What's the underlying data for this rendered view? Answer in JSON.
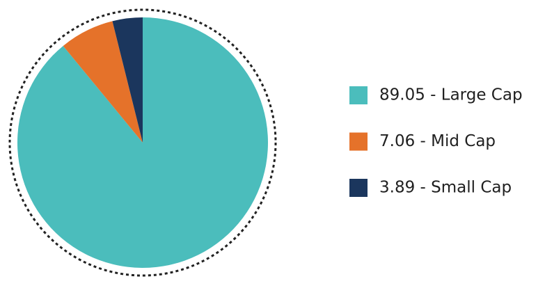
{
  "chart_data": {
    "type": "pie",
    "categories": [
      "89.05 - Large Cap",
      "7.06 - Mid Cap",
      "3.89 - Small Cap"
    ],
    "values": [
      89.05,
      7.06,
      3.89
    ],
    "colors": [
      "#4bbdbc",
      "#e5722a",
      "#1b365d"
    ]
  }
}
